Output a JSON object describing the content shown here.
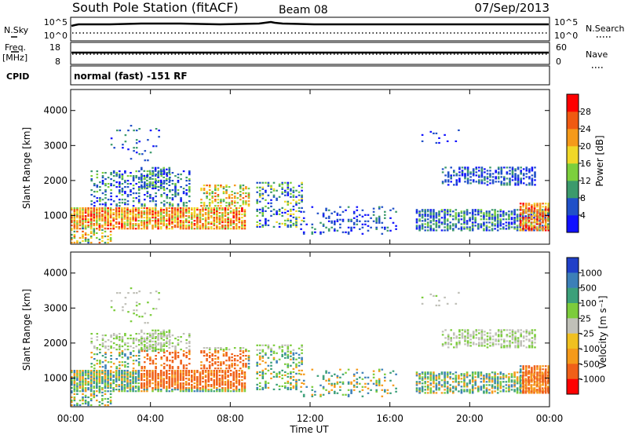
{
  "header": {
    "station": "South Pole Station (fitACF)",
    "beam": "Beam 08",
    "date": "07/Sep/2013"
  },
  "nsky_panel": {
    "left_label": "N.Sky",
    "left_ticks": [
      "10^5",
      "10^0"
    ],
    "right_label": "N.Search",
    "right_ticks": [
      "10^5",
      "10^0"
    ]
  },
  "freq_panel": {
    "left_label_1": "Freq.",
    "left_label_2": "[MHz]",
    "left_ticks": [
      "18",
      "8"
    ],
    "right_label": "Nave",
    "right_ticks": [
      "60",
      "0"
    ]
  },
  "cpid_panel": {
    "label": "CPID",
    "text": "normal (fast) -151 RF"
  },
  "chart_data": [
    {
      "type": "heatmap",
      "name": "power",
      "ylabel": "Slant Range [km]",
      "xlabel": "",
      "xlim": [
        0,
        24
      ],
      "ylim": [
        180,
        4600
      ],
      "x_ticks": [
        "00:00",
        "04:00",
        "08:00",
        "12:00",
        "16:00",
        "20:00",
        "00:00"
      ],
      "y_ticks": [
        1000,
        2000,
        3000,
        4000
      ],
      "colorbar": {
        "label": "Power [dB]",
        "ticks": [
          "4",
          "8",
          "12",
          "16",
          "20",
          "24",
          "28"
        ],
        "tick_values": [
          4,
          8,
          12,
          16,
          20,
          24,
          28
        ],
        "range": [
          0,
          32
        ],
        "colors": [
          "#1010ff",
          "#2050c8",
          "#3c9a6c",
          "#7ccf3c",
          "#f0d828",
          "#f59a1a",
          "#f05a12",
          "#ff0000"
        ]
      }
    },
    {
      "type": "heatmap",
      "name": "velocity",
      "ylabel": "Slant Range [km]",
      "xlabel": "Time UT",
      "xlim": [
        0,
        24
      ],
      "ylim": [
        180,
        4600
      ],
      "x_ticks": [
        "00:00",
        "04:00",
        "08:00",
        "12:00",
        "16:00",
        "20:00",
        "00:00"
      ],
      "y_ticks": [
        1000,
        2000,
        3000,
        4000
      ],
      "colorbar": {
        "label": "Velocity [m s⁻¹]",
        "ticks": [
          "1000",
          "500",
          "100",
          "25",
          "-25",
          "-100",
          "-500",
          "-1000"
        ],
        "colors": [
          "#2040c8",
          "#3c7fb8",
          "#3ca07a",
          "#7ccc3c",
          "#c0c0b8",
          "#f0c020",
          "#f59a1a",
          "#f06018",
          "#ff0000"
        ]
      }
    }
  ]
}
